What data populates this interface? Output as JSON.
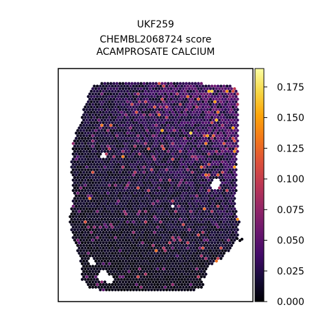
{
  "chart_data": {
    "type": "scatter",
    "subtype": "spatial hexbin (spot) map",
    "title_lines": [
      "UKF259",
      "CHEMBL2068724 score",
      "ACAMPROSATE CALCIUM"
    ],
    "xlabel": "",
    "ylabel": "",
    "axis_ticks": "none",
    "grid": false,
    "colormap": "inferno",
    "colorbar": {
      "position": "right",
      "vmin": 0.0,
      "vmax": 0.19,
      "ticks": [
        0.0,
        0.025,
        0.05,
        0.075,
        0.1,
        0.125,
        0.15,
        0.175
      ],
      "tick_labels": [
        "0.000",
        "0.025",
        "0.050",
        "0.075",
        "0.100",
        "0.125",
        "0.150",
        "0.175"
      ]
    },
    "value_summary": {
      "min": 0.0,
      "max": 0.19,
      "typical_range": [
        0.0,
        0.06
      ],
      "high_value_region": "upper-right of tissue"
    }
  }
}
